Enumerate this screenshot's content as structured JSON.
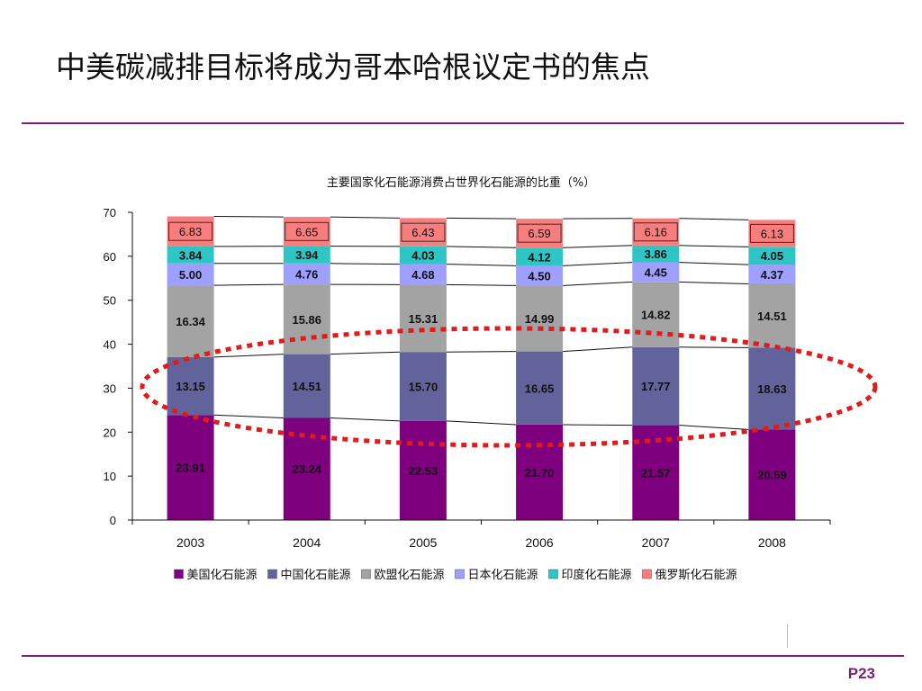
{
  "slide": {
    "title": "中美碳减排目标将成为哥本哈根议定书的焦点",
    "page_number": "P23"
  },
  "colors": {
    "accent": "#7b1f7a",
    "ellipse": "#e01b1b",
    "label_box_border": "#333333"
  },
  "chart_data": {
    "type": "bar",
    "stacked": true,
    "title": "主要国家化石能源消费占世界化石能源的比重（%）",
    "categories": [
      "2003",
      "2004",
      "2005",
      "2006",
      "2007",
      "2008"
    ],
    "ylim": [
      0,
      70
    ],
    "yticks": [
      0,
      10,
      20,
      30,
      40,
      50,
      60,
      70
    ],
    "grid": false,
    "legend_position": "bottom",
    "series_lines": true,
    "highlight": "red dotted ellipse around US and China segments",
    "series": [
      {
        "name": "美国化石能源",
        "color": "#7f007f",
        "values": [
          23.91,
          23.24,
          22.53,
          21.7,
          21.57,
          20.59
        ],
        "labels": [
          "23.91",
          "23.24",
          "22.53",
          "21.70",
          "21.57",
          "20.59"
        ]
      },
      {
        "name": "中国化石能源",
        "color": "#63639c",
        "values": [
          13.15,
          14.51,
          15.7,
          16.65,
          17.77,
          18.63
        ],
        "labels": [
          "13.15",
          "14.51",
          "15.70",
          "16.65",
          "17.77",
          "18.63"
        ]
      },
      {
        "name": "欧盟化石能源",
        "color": "#a3a3a3",
        "values": [
          16.34,
          15.86,
          15.31,
          14.99,
          14.82,
          14.51
        ],
        "labels": [
          "16.34",
          "15.86",
          "15.31",
          "14.99",
          "14.82",
          "14.51"
        ]
      },
      {
        "name": "日本化石能源",
        "color": "#9f9fff",
        "values": [
          5.0,
          4.76,
          4.68,
          4.5,
          4.45,
          4.37
        ],
        "labels": [
          "5.00",
          "4.76",
          "4.68",
          "4.50",
          "4.45",
          "4.37"
        ]
      },
      {
        "name": "印度化石能源",
        "color": "#2fc5c5",
        "values": [
          3.84,
          3.94,
          4.03,
          4.12,
          3.86,
          4.05
        ],
        "labels": [
          "3.84",
          "3.94",
          "4.03",
          "4.12",
          "3.86",
          "4.05"
        ]
      },
      {
        "name": "俄罗斯化石能源",
        "color": "#f87d7d",
        "values": [
          6.83,
          6.65,
          6.43,
          6.59,
          6.16,
          6.13
        ],
        "labels": [
          "6.83",
          "6.65",
          "6.43",
          "6.59",
          "6.16",
          "6.13"
        ]
      }
    ]
  }
}
